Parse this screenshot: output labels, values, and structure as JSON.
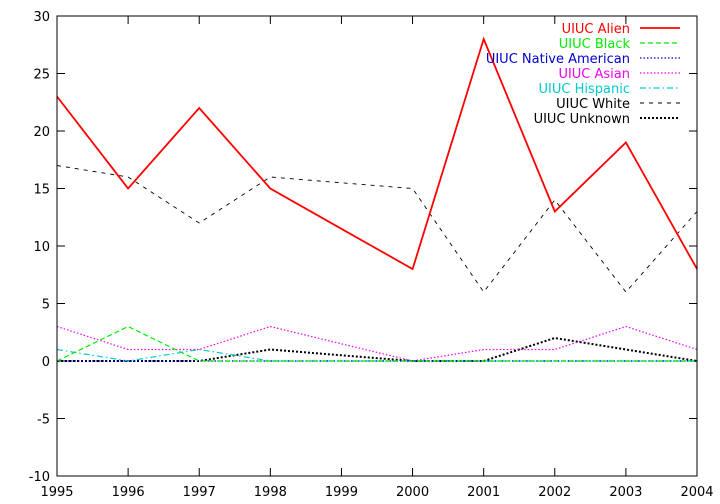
{
  "chart_data": {
    "type": "line",
    "title": "",
    "xlabel": "",
    "ylabel": "",
    "x": [
      1995,
      1996,
      1997,
      1998,
      1999,
      2000,
      2001,
      2002,
      2003,
      2004
    ],
    "xlim": [
      1995,
      2004
    ],
    "ylim": [
      -10,
      30
    ],
    "xticks": [
      "1995",
      "1996",
      "1997",
      "1998",
      "1999",
      "2000",
      "2001",
      "2002",
      "2003",
      "2004"
    ],
    "yticks": [
      "-10",
      "-5",
      "0",
      "5",
      "10",
      "15",
      "20",
      "25",
      "30"
    ],
    "grid": false,
    "legend_position": "top-right",
    "series": [
      {
        "name": "UIUC Alien",
        "color": "#ff0000",
        "dash": "solid",
        "values": [
          23,
          15,
          22,
          15,
          11.5,
          8,
          28,
          13,
          19,
          8
        ]
      },
      {
        "name": "UIUC Black",
        "color": "#00ee00",
        "dash": "dashed",
        "values": [
          0,
          3,
          0,
          0,
          0,
          0,
          0,
          0,
          0,
          0
        ]
      },
      {
        "name": "UIUC Native American",
        "color": "#0000cc",
        "dash": "dotted",
        "values": [
          0,
          0,
          0,
          0,
          0,
          0,
          0,
          0,
          0,
          0
        ]
      },
      {
        "name": "UIUC Asian",
        "color": "#ee00ee",
        "dash": "dotted",
        "values": [
          3,
          1,
          1,
          3,
          1.5,
          0,
          1,
          1,
          3,
          1
        ]
      },
      {
        "name": "UIUC Hispanic",
        "color": "#00cccc",
        "dash": "dashdot",
        "values": [
          1,
          0,
          1,
          0,
          0,
          0,
          0,
          0,
          0,
          0
        ]
      },
      {
        "name": "UIUC White",
        "color": "#000000",
        "dash": "sparse-dashed",
        "values": [
          17,
          16,
          12,
          16,
          15.5,
          15,
          6,
          14,
          6,
          13
        ]
      },
      {
        "name": "UIUC Unknown",
        "color": "#000000",
        "dash": "dense-dotted",
        "values": [
          0,
          0,
          0,
          1,
          0.5,
          0,
          0,
          2,
          1,
          0
        ]
      }
    ]
  }
}
